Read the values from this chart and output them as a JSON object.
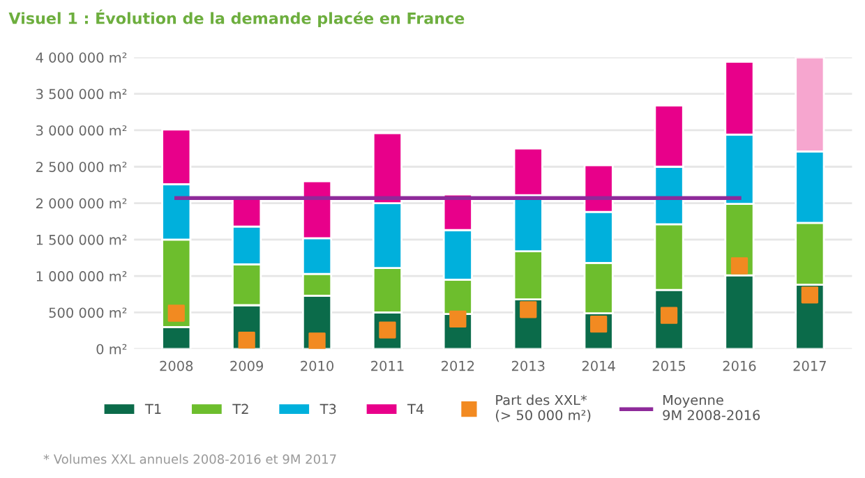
{
  "chart_data": {
    "type": "bar",
    "title": "Visuel 1 : Évolution de la demande placée en France",
    "categories": [
      "2008",
      "2009",
      "2010",
      "2011",
      "2012",
      "2013",
      "2014",
      "2015",
      "2016",
      "2017"
    ],
    "stacked": true,
    "series": [
      {
        "name": "T1",
        "color": "#0b6b4a",
        "values": [
          300000,
          600000,
          730000,
          500000,
          480000,
          680000,
          490000,
          810000,
          1010000,
          880000
        ]
      },
      {
        "name": "T2",
        "color": "#6dbe2d",
        "values": [
          1200000,
          560000,
          300000,
          610000,
          470000,
          660000,
          690000,
          900000,
          980000,
          850000
        ]
      },
      {
        "name": "T3",
        "color": "#00b0dc",
        "values": [
          760000,
          520000,
          490000,
          890000,
          680000,
          770000,
          700000,
          790000,
          950000,
          980000
        ]
      },
      {
        "name": "T4",
        "color": "#e8008a",
        "colors": [
          "#e8008a",
          "#e8008a",
          "#e8008a",
          "#e8008a",
          "#e8008a",
          "#e8008a",
          "#e8008a",
          "#e8008a",
          "#e8008a",
          "#f6a6cf"
        ],
        "values": [
          750000,
          390000,
          780000,
          960000,
          490000,
          640000,
          640000,
          840000,
          1000000,
          1290000
        ]
      },
      {
        "name": "Part des XXL*\n(> 50 000 m²)",
        "type": "scatter",
        "marker": "square",
        "color": "#f28a21",
        "values": [
          490000,
          120000,
          110000,
          260000,
          410000,
          540000,
          340000,
          460000,
          1140000,
          740000
        ]
      },
      {
        "name": "Moyenne\n9M 2008-2016",
        "type": "line",
        "color": "#8e2a9a",
        "values": [
          2070000,
          2070000,
          2070000,
          2070000,
          2070000,
          2070000,
          2070000,
          2070000,
          2070000,
          null
        ]
      }
    ],
    "ylim": [
      0,
      4000000
    ],
    "yticks": [
      {
        "value": 0,
        "label": "0 m²"
      },
      {
        "value": 500000,
        "label": "500 000 m²"
      },
      {
        "value": 1000000,
        "label": "1 000 000 m²"
      },
      {
        "value": 1500000,
        "label": "1 500 000 m²"
      },
      {
        "value": 2000000,
        "label": "2 000 000 m²"
      },
      {
        "value": 2500000,
        "label": "2 500 000 m²"
      },
      {
        "value": 3000000,
        "label": "3 000 000 m²"
      },
      {
        "value": 3500000,
        "label": "3 500 000 m²"
      },
      {
        "value": 4000000,
        "label": "4 000 000 m²"
      }
    ],
    "grid": "y",
    "legend": "bottom",
    "annotations": [
      "* Volumes XXL annuels 2008-2016 et 9M 2017"
    ]
  }
}
